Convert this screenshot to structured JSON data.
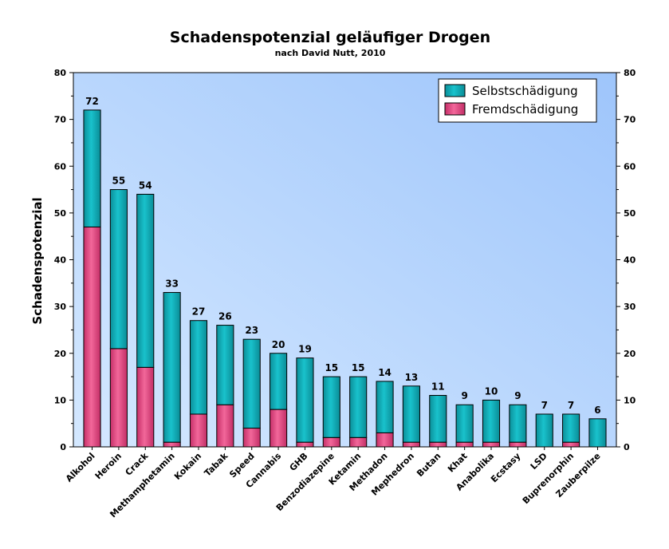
{
  "chart_data": {
    "type": "bar",
    "stacked": true,
    "title": "Schadenspotenzial geläufiger Drogen",
    "subtitle": "nach David Nutt, 2010",
    "ylabel": "Schadenspotenzial",
    "xlabel": "",
    "ylim": [
      0,
      80
    ],
    "yticks": [
      0,
      10,
      20,
      30,
      40,
      50,
      60,
      70,
      80
    ],
    "legend_position": "top-right",
    "grid": false,
    "categories": [
      "Alkohol",
      "Heroin",
      "Crack",
      "Methamphetamin",
      "Kokain",
      "Tabak",
      "Speed",
      "Cannabis",
      "GHB",
      "Benzodiazepine",
      "Ketamin",
      "Methadon",
      "Mephedron",
      "Butan",
      "Khat",
      "Anabolika",
      "Ecstasy",
      "LSD",
      "Buprenorphin",
      "Zauberpilze"
    ],
    "totals": [
      72,
      55,
      54,
      33,
      27,
      26,
      23,
      20,
      19,
      15,
      15,
      14,
      13,
      11,
      9,
      10,
      9,
      7,
      7,
      6
    ],
    "series": [
      {
        "name": "Fremdschädigung",
        "color": "#e0457f",
        "values": [
          47,
          21,
          17,
          1,
          7,
          9,
          4,
          8,
          1,
          2,
          2,
          3,
          1,
          1,
          1,
          1,
          1,
          0,
          1,
          0
        ]
      },
      {
        "name": "Selbstschädigung",
        "color": "#10a9b4",
        "values": [
          25,
          34,
          37,
          32,
          20,
          17,
          19,
          12,
          18,
          13,
          13,
          11,
          12,
          10,
          8,
          9,
          8,
          7,
          6,
          6
        ]
      }
    ],
    "legend_order": [
      "Selbstschädigung",
      "Fremdschädigung"
    ],
    "background_gradient": [
      "#d4e8ff",
      "#9ec5fb"
    ]
  }
}
